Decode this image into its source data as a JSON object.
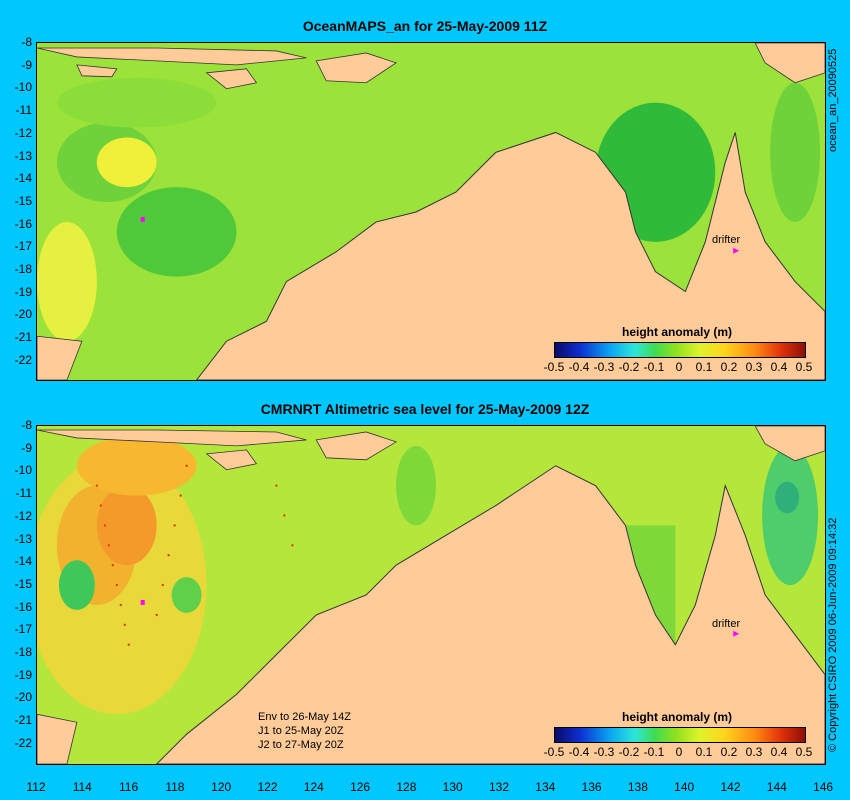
{
  "titles": {
    "top": "OceanMAPS_an for 25-May-2009 11Z",
    "bottom": "CMRNRT Altimetric sea level  for 25-May-2009 12Z"
  },
  "y_axis_ticks": [
    "-8",
    "-9",
    "-10",
    "-11",
    "-12",
    "-13",
    "-14",
    "-15",
    "-16",
    "-17",
    "-18",
    "-19",
    "-20",
    "-21",
    "-22"
  ],
  "x_axis_ticks": [
    "112",
    "114",
    "116",
    "118",
    "120",
    "122",
    "124",
    "126",
    "128",
    "130",
    "132",
    "134",
    "136",
    "138",
    "140",
    "142",
    "144",
    "146"
  ],
  "side_labels": {
    "top_right": "ocean_an_20090525",
    "bottom_right": "© Copyright CSIRO 2009   06-Jun-2009 09:14:32"
  },
  "legend": {
    "title": "height anomaly (m)",
    "ticks": [
      "-0.5",
      "-0.4",
      "-0.3",
      "-0.2",
      "-0.1",
      "0",
      "0.1",
      "0.2",
      "0.3",
      "0.4",
      "0.5"
    ]
  },
  "drifter_label": "drifter",
  "notes": [
    "Env to 26-May 14Z",
    "J1 to 25-May 20Z",
    "J2 to 27-May 20Z"
  ],
  "colors": {
    "background": "#00c8ff",
    "land": "#ffcc99",
    "sea": "#a6e63c",
    "drifter": "#ff00ff"
  }
}
